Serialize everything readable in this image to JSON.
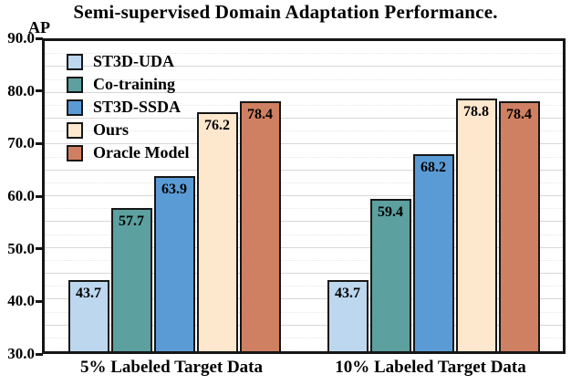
{
  "title": "Semi-supervised Domain Adaptation Performance.",
  "chart_data": {
    "type": "bar",
    "title": "Semi-supervised Domain Adaptation Performance.",
    "ylabel": "AP",
    "xlabel": "",
    "categories": [
      "5% Labeled Target Data",
      "10% Labeled Target Data"
    ],
    "series": [
      {
        "name": "ST3D-UDA",
        "color": "#BDD7EE",
        "values": [
          43.7,
          43.7
        ]
      },
      {
        "name": "Co-training",
        "color": "#5CA09F",
        "values": [
          57.7,
          59.4
        ]
      },
      {
        "name": "ST3D-SSDA",
        "color": "#5B9BD5",
        "values": [
          63.9,
          68.2
        ]
      },
      {
        "name": "Ours",
        "color": "#FDE8CD",
        "values": [
          76.2,
          78.8
        ]
      },
      {
        "name": "Oracle Model",
        "color": "#D08062",
        "values": [
          78.4,
          78.4
        ]
      }
    ],
    "ylim": [
      30,
      90
    ],
    "yticks": [
      "90.0",
      "80.0",
      "70.0",
      "60.0",
      "50.0",
      "40.0",
      "30.0"
    ],
    "grid": "horizontal, major every 5 with minor dotted every 2.5",
    "legend_position": "top-left inside plot",
    "bar_value_labels": "inside top of each bar, one decimal"
  }
}
